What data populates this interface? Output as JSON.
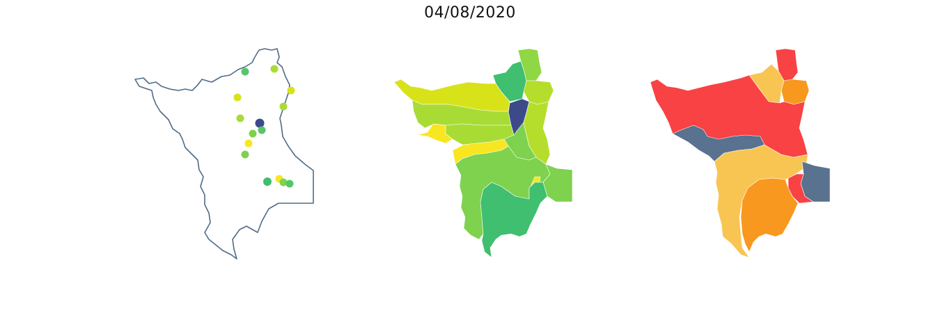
{
  "figure": {
    "title": "04/08/2020"
  },
  "colors": {
    "outline": "#4f6b87",
    "dark_blue": "#3d4a8a",
    "dark_green": "#3fbf6f",
    "green": "#7ed24e",
    "light_green": "#a8dc35",
    "yellow_green": "#d8e219",
    "yellow": "#f8e621",
    "red": "#f84244",
    "light_orange": "#f8c553",
    "orange": "#f8981f",
    "slate": "#58728f"
  },
  "panels": [
    {
      "name": "station-points-map",
      "type": "point map"
    },
    {
      "name": "region-viridis-map",
      "type": "choropleth"
    },
    {
      "name": "region-risk-map",
      "type": "choropleth"
    }
  ]
}
